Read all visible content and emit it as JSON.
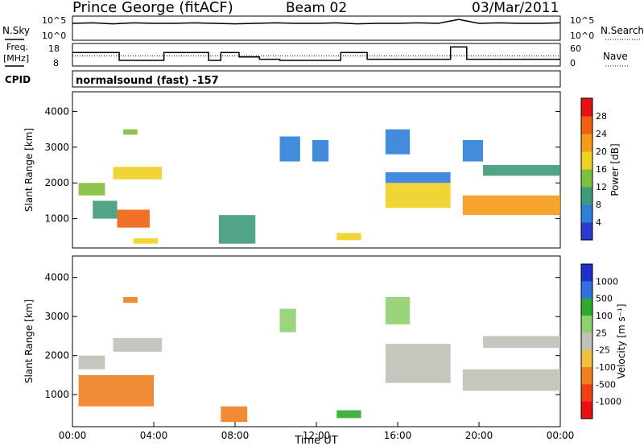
{
  "header": {
    "station": "Prince George (fitACF)",
    "beam": "Beam 02",
    "date": "03/Mar/2011"
  },
  "strip_labels": {
    "nsky": "N.Sky",
    "freq_line1": "Freq.",
    "freq_line2": "[MHz]",
    "cpid": "CPID",
    "nsearch": "N.Search",
    "nave": "Nave",
    "cpid_text": "normalsound (fast) -157"
  },
  "noise_axis": {
    "left": [
      "10^5",
      "10^0"
    ],
    "right": [
      "10^5",
      "10^0"
    ]
  },
  "freq_axis": {
    "left": [
      "18",
      "8"
    ],
    "right": [
      "60",
      "0"
    ]
  },
  "colors": {
    "power": [
      "#2a3ad0",
      "#2f7fd8",
      "#3f9a7a",
      "#7fbf3f",
      "#f0d020",
      "#f59a1a",
      "#f06010",
      "#e81010"
    ],
    "velocity": [
      "#2030c8",
      "#3070e0",
      "#2faa2f",
      "#8fd06f",
      "#c0c0b8",
      "#f0c040",
      "#f08020",
      "#f04010",
      "#e81010"
    ]
  },
  "chart_data": [
    {
      "type": "line",
      "name": "noise",
      "x": [
        0,
        1,
        2,
        3,
        4,
        5,
        6,
        7,
        8,
        9,
        10,
        11,
        12,
        13,
        14,
        15,
        16,
        17,
        18,
        19,
        20,
        21,
        22,
        23,
        24
      ],
      "series": [
        {
          "name": "N.Sky",
          "values": [
            3.5,
            3.6,
            3.4,
            3.6,
            3.5,
            3.5,
            3.6,
            3.5,
            3.4,
            3.5,
            3.6,
            3.5,
            3.5,
            3.6,
            3.4,
            3.5,
            3.5,
            3.6,
            3.5,
            4.3,
            3.5,
            3.6,
            3.5,
            3.5,
            3.6
          ]
        }
      ],
      "ylim": [
        0,
        5
      ],
      "xlim": [
        0,
        24
      ]
    },
    {
      "type": "line",
      "name": "frequency",
      "x": [
        0,
        2.3,
        4.5,
        6.7,
        7.3,
        8.2,
        9.2,
        10.2,
        13.2,
        14.5,
        18.6,
        19.4,
        24
      ],
      "series": [
        {
          "name": "Freq.",
          "values": [
            14,
            10.5,
            14,
            10.5,
            14,
            12,
            11,
            10.5,
            14,
            11,
            16.5,
            11,
            11
          ]
        }
      ],
      "ylim": [
        8,
        18
      ],
      "nave_reference": 12.5
    },
    {
      "type": "heatmap",
      "name": "power",
      "xlabel": "",
      "ylabel": "Slant Range [km]",
      "xlim": [
        0,
        24
      ],
      "ylim": [
        180,
        4550
      ],
      "yticks": [
        1000,
        2000,
        3000,
        4000
      ],
      "colorbar": {
        "label": "Power [dB]",
        "ticks": [
          4,
          8,
          12,
          16,
          20,
          24,
          28
        ],
        "range": [
          0,
          32
        ]
      },
      "regions": [
        {
          "t0": 0.3,
          "t1": 1.6,
          "r0": 1650,
          "r1": 2000,
          "level": 12
        },
        {
          "t0": 2.0,
          "t1": 4.4,
          "r0": 2100,
          "r1": 2450,
          "level": 16
        },
        {
          "t0": 2.2,
          "t1": 3.8,
          "r0": 750,
          "r1": 1250,
          "level": 26
        },
        {
          "t0": 1.0,
          "t1": 2.2,
          "r0": 1000,
          "r1": 1500,
          "level": 10
        },
        {
          "t0": 3.0,
          "t1": 4.2,
          "r0": 300,
          "r1": 450,
          "level": 18
        },
        {
          "t0": 2.5,
          "t1": 3.2,
          "r0": 3350,
          "r1": 3500,
          "level": 14
        },
        {
          "t0": 10.2,
          "t1": 11.2,
          "r0": 2600,
          "r1": 3300,
          "level": 6
        },
        {
          "t0": 11.8,
          "t1": 12.6,
          "r0": 2600,
          "r1": 3200,
          "level": 6
        },
        {
          "t0": 13.0,
          "t1": 14.2,
          "r0": 400,
          "r1": 600,
          "level": 18
        },
        {
          "t0": 7.2,
          "t1": 9.0,
          "r0": 300,
          "r1": 1100,
          "level": 8
        },
        {
          "t0": 15.4,
          "t1": 18.6,
          "r0": 1300,
          "r1": 2000,
          "level": 18
        },
        {
          "t0": 15.4,
          "t1": 18.6,
          "r0": 2000,
          "r1": 2300,
          "level": 7
        },
        {
          "t0": 15.4,
          "t1": 16.6,
          "r0": 2800,
          "r1": 3500,
          "level": 5
        },
        {
          "t0": 19.2,
          "t1": 24,
          "r0": 1100,
          "r1": 1650,
          "level": 20
        },
        {
          "t0": 20.2,
          "t1": 24,
          "r0": 2200,
          "r1": 2500,
          "level": 8
        },
        {
          "t0": 19.2,
          "t1": 20.2,
          "r0": 2600,
          "r1": 3200,
          "level": 6
        }
      ]
    },
    {
      "type": "heatmap",
      "name": "velocity",
      "xlabel": "Time UT",
      "ylabel": "Slant Range [km]",
      "xlim": [
        0,
        24
      ],
      "ylim": [
        180,
        4550
      ],
      "xticks": [
        "00:00",
        "04:00",
        "08:00",
        "12:00",
        "16:00",
        "20:00",
        "00:00"
      ],
      "yticks": [
        1000,
        2000,
        3000,
        4000
      ],
      "colorbar": {
        "label": "Velocity [m s⁻¹]",
        "ticks": [
          "1000",
          "500",
          "100",
          "25",
          "-25",
          "-100",
          "-500",
          "-1000"
        ]
      },
      "regions": [
        {
          "t0": 0.3,
          "t1": 1.6,
          "r0": 1650,
          "r1": 2000,
          "level": "gray"
        },
        {
          "t0": 2.0,
          "t1": 4.4,
          "r0": 2100,
          "r1": 2450,
          "level": "gray"
        },
        {
          "t0": 0.3,
          "t1": 4.0,
          "r0": 700,
          "r1": 1500,
          "level": "orange"
        },
        {
          "t0": 2.5,
          "t1": 3.2,
          "r0": 3350,
          "r1": 3500,
          "level": "orange"
        },
        {
          "t0": 7.3,
          "t1": 8.6,
          "r0": 300,
          "r1": 700,
          "level": "orange"
        },
        {
          "t0": 13.0,
          "t1": 14.2,
          "r0": 400,
          "r1": 600,
          "level": "green"
        },
        {
          "t0": 10.2,
          "t1": 11.0,
          "r0": 2600,
          "r1": 3200,
          "level": "lightgreen"
        },
        {
          "t0": 15.4,
          "t1": 18.6,
          "r0": 1300,
          "r1": 2300,
          "level": "gray"
        },
        {
          "t0": 15.4,
          "t1": 16.6,
          "r0": 2800,
          "r1": 3500,
          "level": "lightgreen"
        },
        {
          "t0": 19.2,
          "t1": 24,
          "r0": 1100,
          "r1": 1650,
          "level": "gray"
        },
        {
          "t0": 20.2,
          "t1": 24,
          "r0": 2200,
          "r1": 2500,
          "level": "gray"
        }
      ]
    }
  ]
}
